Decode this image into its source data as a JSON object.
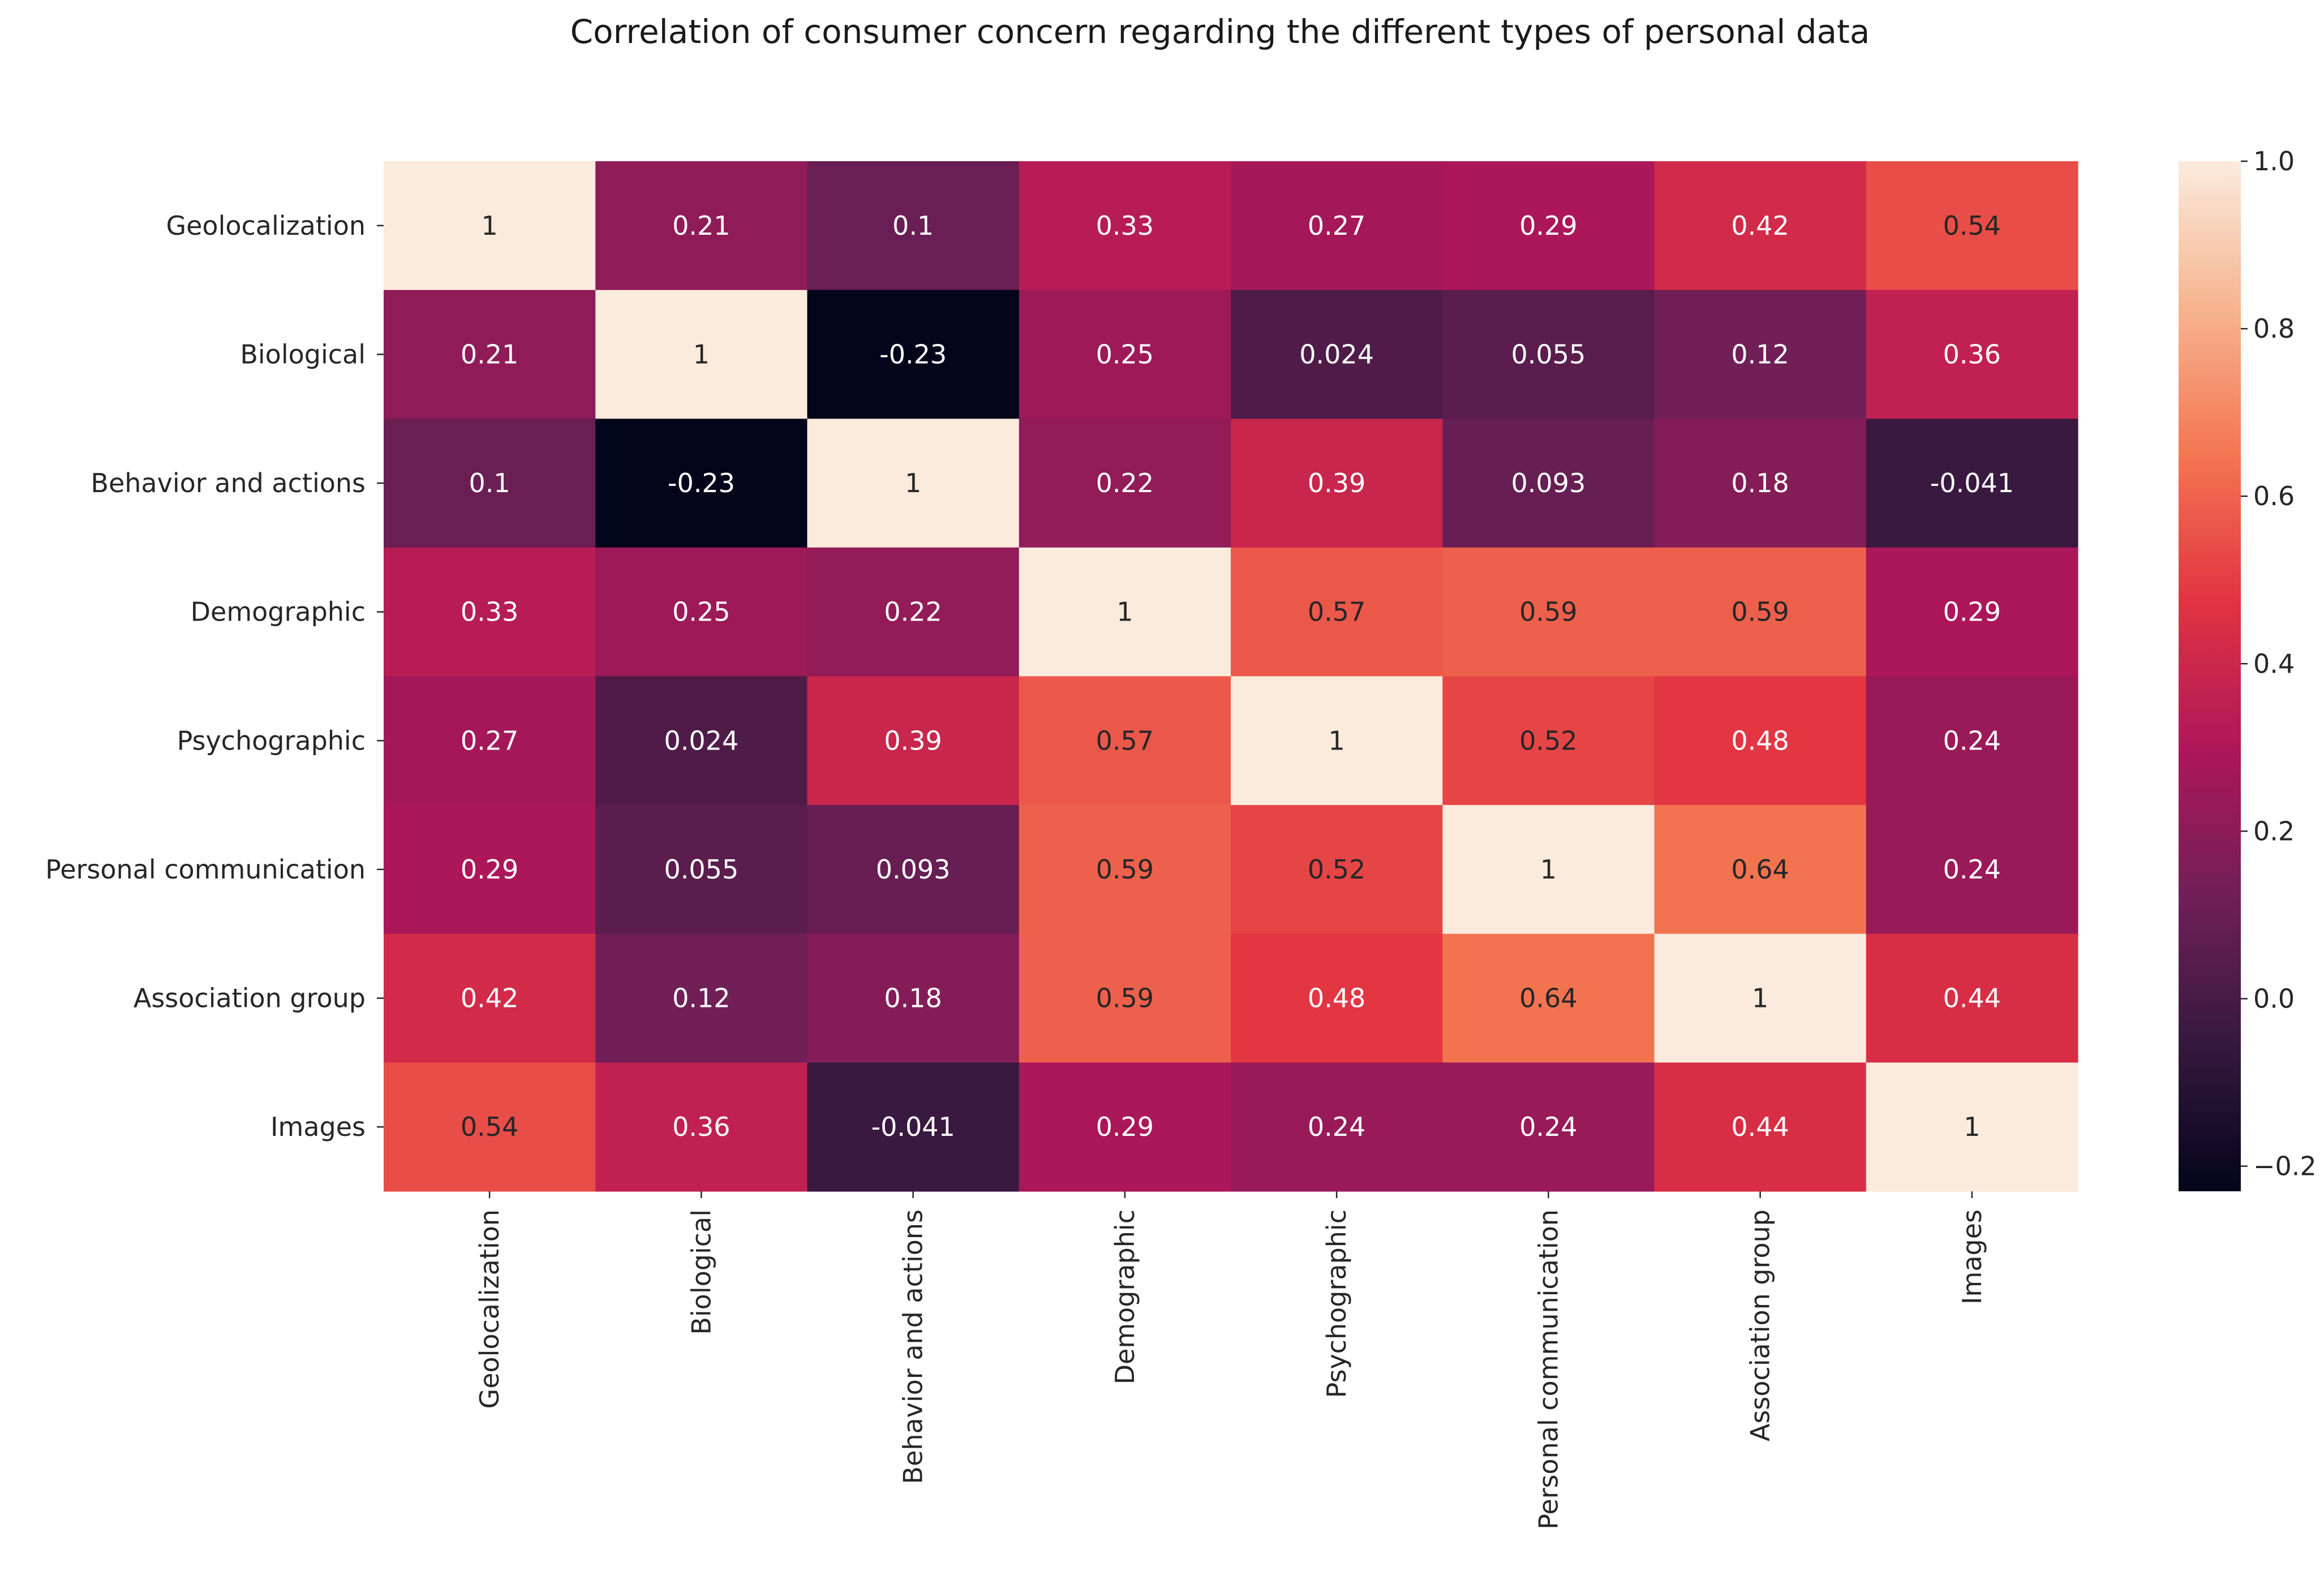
{
  "chart_data": {
    "type": "heatmap",
    "title": "Correlation of consumer concern regarding the different types of personal data",
    "xlabel": "",
    "ylabel": "",
    "row_labels": [
      "Geolocalization",
      "Biological",
      "Behavior and actions",
      "Demographic",
      "Psychographic",
      "Personal communication",
      "Association group",
      "Images"
    ],
    "column_labels": [
      "Geolocalization",
      "Biological",
      "Behavior and actions",
      "Demographic",
      "Psychographic",
      "Personal communication",
      "Association group",
      "Images"
    ],
    "values": [
      [
        1,
        0.21,
        0.1,
        0.33,
        0.27,
        0.29,
        0.42,
        0.54
      ],
      [
        0.21,
        1,
        -0.23,
        0.25,
        0.024,
        0.055,
        0.12,
        0.36
      ],
      [
        0.1,
        -0.23,
        1,
        0.22,
        0.39,
        0.093,
        0.18,
        -0.041
      ],
      [
        0.33,
        0.25,
        0.22,
        1,
        0.57,
        0.59,
        0.59,
        0.29
      ],
      [
        0.27,
        0.024,
        0.39,
        0.57,
        1,
        0.52,
        0.48,
        0.24
      ],
      [
        0.29,
        0.055,
        0.093,
        0.59,
        0.52,
        1,
        0.64,
        0.24
      ],
      [
        0.42,
        0.12,
        0.18,
        0.59,
        0.48,
        0.64,
        1,
        0.44
      ],
      [
        0.54,
        0.36,
        -0.041,
        0.29,
        0.24,
        0.24,
        0.44,
        1
      ]
    ],
    "cell_labels": [
      [
        "1",
        "0.21",
        "0.1",
        "0.33",
        "0.27",
        "0.29",
        "0.42",
        "0.54"
      ],
      [
        "0.21",
        "1",
        "-0.23",
        "0.25",
        "0.024",
        "0.055",
        "0.12",
        "0.36"
      ],
      [
        "0.1",
        "-0.23",
        "1",
        "0.22",
        "0.39",
        "0.093",
        "0.18",
        "-0.041"
      ],
      [
        "0.33",
        "0.25",
        "0.22",
        "1",
        "0.57",
        "0.59",
        "0.59",
        "0.29"
      ],
      [
        "0.27",
        "0.024",
        "0.39",
        "0.57",
        "1",
        "0.52",
        "0.48",
        "0.24"
      ],
      [
        "0.29",
        "0.055",
        "0.093",
        "0.59",
        "0.52",
        "1",
        "0.64",
        "0.24"
      ],
      [
        "0.42",
        "0.12",
        "0.18",
        "0.59",
        "0.48",
        "0.64",
        "1",
        "0.44"
      ],
      [
        "0.54",
        "0.36",
        "-0.041",
        "0.29",
        "0.24",
        "0.24",
        "0.44",
        "1"
      ]
    ],
    "colormap": "rocket",
    "colormap_stops": [
      "#03051a",
      "#35193e",
      "#701f57",
      "#ad1759",
      "#e13342",
      "#f37651",
      "#f6b48f",
      "#faebdd"
    ],
    "color_range": [
      -0.23,
      1.0
    ],
    "colorbar_ticks": [
      1.0,
      0.8,
      0.6,
      0.4,
      0.2,
      0.0,
      -0.2
    ],
    "colorbar_tick_labels": [
      "1.0",
      "0.8",
      "0.6",
      "0.4",
      "0.2",
      "0.0",
      "−0.2"
    ],
    "grid": false,
    "legend": "colorbar-right"
  }
}
